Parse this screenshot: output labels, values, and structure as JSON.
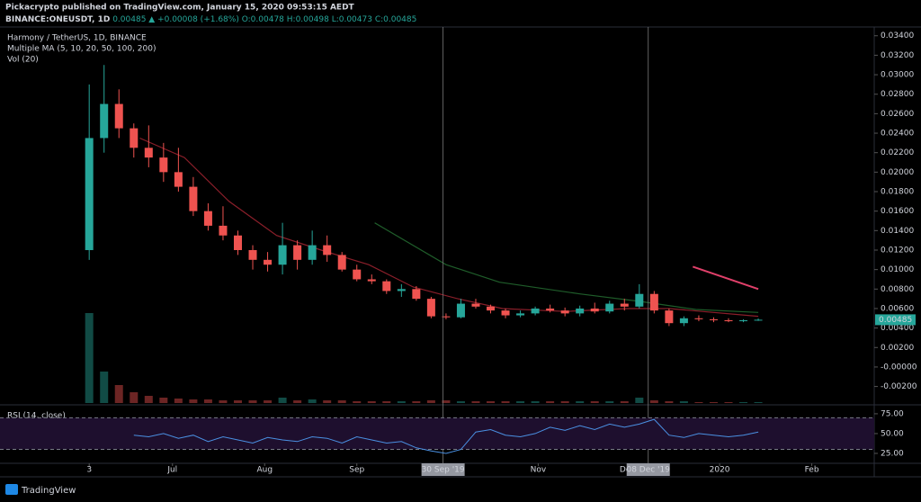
{
  "header": {
    "line1": "Pickacrypto published on TradingView.com, January 15, 2020 09:53:15 AEDT",
    "symbol": "BINANCE:ONEUSDT, 1D",
    "change": "0.00485 ▲ +0.00008 (+1.68%)",
    "ohlc": [
      "O:0.00478",
      "H:0.00498",
      "L:0.00473",
      "C:0.00485"
    ]
  },
  "footer": "TradingView",
  "chart_data": [
    {
      "type": "candlestick",
      "title": "Harmony / TetherUS, 1D, BINANCE",
      "indicators": [
        "Multiple MA (5, 10, 20, 50, 100, 200)",
        "Vol (20)"
      ],
      "x": [
        "2019-06-03",
        "2019-06-08",
        "2019-06-13",
        "2019-06-18",
        "2019-06-23",
        "2019-06-28",
        "2019-07-03",
        "2019-07-08",
        "2019-07-13",
        "2019-07-18",
        "2019-07-23",
        "2019-07-28",
        "2019-08-02",
        "2019-08-07",
        "2019-08-12",
        "2019-08-17",
        "2019-08-22",
        "2019-08-27",
        "2019-09-01",
        "2019-09-06",
        "2019-09-11",
        "2019-09-16",
        "2019-09-21",
        "2019-09-26",
        "2019-10-01",
        "2019-10-06",
        "2019-10-11",
        "2019-10-16",
        "2019-10-21",
        "2019-10-26",
        "2019-10-31",
        "2019-11-05",
        "2019-11-10",
        "2019-11-15",
        "2019-11-20",
        "2019-11-25",
        "2019-11-30",
        "2019-12-05",
        "2019-12-10",
        "2019-12-15",
        "2019-12-20",
        "2019-12-25",
        "2019-12-30",
        "2020-01-04",
        "2020-01-09",
        "2020-01-14"
      ],
      "open": [
        0.012,
        0.0235,
        0.027,
        0.0245,
        0.0225,
        0.0215,
        0.02,
        0.0185,
        0.016,
        0.0145,
        0.0135,
        0.012,
        0.011,
        0.0105,
        0.0125,
        0.011,
        0.0125,
        0.0115,
        0.01,
        0.009,
        0.0088,
        0.0078,
        0.008,
        0.007,
        0.0052,
        0.0051,
        0.0065,
        0.0062,
        0.0058,
        0.0053,
        0.0055,
        0.006,
        0.0058,
        0.0055,
        0.006,
        0.0057,
        0.0065,
        0.0062,
        0.0075,
        0.0058,
        0.0045,
        0.005,
        0.0049,
        0.0048,
        0.0047,
        0.00478
      ],
      "high": [
        0.029,
        0.031,
        0.0285,
        0.025,
        0.0248,
        0.023,
        0.0225,
        0.0195,
        0.0168,
        0.0165,
        0.014,
        0.0125,
        0.0118,
        0.0148,
        0.013,
        0.014,
        0.0135,
        0.0118,
        0.0105,
        0.0095,
        0.009,
        0.0085,
        0.0083,
        0.0072,
        0.0055,
        0.007,
        0.007,
        0.0064,
        0.006,
        0.0058,
        0.0062,
        0.0064,
        0.0061,
        0.0063,
        0.0066,
        0.0068,
        0.007,
        0.0085,
        0.0078,
        0.006,
        0.0052,
        0.0053,
        0.0051,
        0.005,
        0.0049,
        0.00498
      ],
      "low": [
        0.011,
        0.022,
        0.0235,
        0.0215,
        0.0205,
        0.019,
        0.018,
        0.0155,
        0.014,
        0.013,
        0.0115,
        0.01,
        0.0098,
        0.0095,
        0.01,
        0.0105,
        0.0108,
        0.0098,
        0.0088,
        0.0085,
        0.0075,
        0.0072,
        0.0068,
        0.005,
        0.0049,
        0.005,
        0.006,
        0.0055,
        0.005,
        0.0051,
        0.0053,
        0.0056,
        0.0052,
        0.0052,
        0.0055,
        0.0055,
        0.0058,
        0.006,
        0.0055,
        0.0042,
        0.0042,
        0.0047,
        0.0046,
        0.0046,
        0.0046,
        0.00473
      ],
      "close": [
        0.0235,
        0.027,
        0.0245,
        0.0225,
        0.0215,
        0.02,
        0.0185,
        0.016,
        0.0145,
        0.0135,
        0.012,
        0.011,
        0.0105,
        0.0125,
        0.011,
        0.0125,
        0.0115,
        0.01,
        0.009,
        0.0088,
        0.0078,
        0.008,
        0.007,
        0.0052,
        0.0051,
        0.0065,
        0.0062,
        0.0058,
        0.0053,
        0.0055,
        0.006,
        0.0058,
        0.0055,
        0.006,
        0.0057,
        0.0065,
        0.0062,
        0.0075,
        0.0058,
        0.0045,
        0.005,
        0.0049,
        0.0048,
        0.0047,
        0.0048,
        0.00485
      ],
      "volume": [
        100,
        35,
        20,
        12,
        8,
        6,
        5,
        4,
        4,
        3,
        3,
        3,
        3,
        6,
        3,
        4,
        3,
        3,
        2,
        2,
        2,
        2,
        2,
        3,
        3,
        2,
        2,
        2,
        2,
        2,
        2,
        2,
        2,
        2,
        2,
        2,
        2,
        6,
        3,
        2,
        2,
        1,
        1,
        1,
        1,
        1
      ],
      "up_color": "#26a69a",
      "down_color": "#ef5350",
      "series": [
        {
          "color": "#8b1f2a",
          "x": [
            "2019-06-20",
            "2019-07-05",
            "2019-07-20",
            "2019-08-05",
            "2019-08-20",
            "2019-09-05",
            "2019-09-20",
            "2019-10-05",
            "2019-10-20",
            "2019-11-10",
            "2019-12-01",
            "2019-12-15",
            "2020-01-14"
          ],
          "values": [
            0.0235,
            0.0215,
            0.017,
            0.0135,
            0.012,
            0.0105,
            0.0082,
            0.007,
            0.006,
            0.0057,
            0.006,
            0.006,
            0.0052
          ]
        },
        {
          "color": "#1f5d2a",
          "x": [
            "2019-09-07",
            "2019-10-01",
            "2019-10-19",
            "2019-11-15",
            "2019-12-06",
            "2019-12-24",
            "2020-01-14"
          ],
          "values": [
            0.0148,
            0.0105,
            0.0087,
            0.0075,
            0.0067,
            0.0059,
            0.0056
          ]
        },
        {
          "color": "#e0406a",
          "x": [
            "2019-12-23",
            "2020-01-14"
          ],
          "values": [
            0.0103,
            0.008
          ]
        }
      ],
      "ylim": [
        -0.0037,
        0.0349
      ],
      "yticks": [
        {
          "value": 0.034,
          "label": "0.03400"
        },
        {
          "value": 0.032,
          "label": "0.03200"
        },
        {
          "value": 0.03,
          "label": "0.03000"
        },
        {
          "value": 0.028,
          "label": "0.02800"
        },
        {
          "value": 0.026,
          "label": "0.02600"
        },
        {
          "value": 0.024,
          "label": "0.02400"
        },
        {
          "value": 0.022,
          "label": "0.02200"
        },
        {
          "value": 0.02,
          "label": "0.02000"
        },
        {
          "value": 0.018,
          "label": "0.01800"
        },
        {
          "value": 0.016,
          "label": "0.01600"
        },
        {
          "value": 0.014,
          "label": "0.01400"
        },
        {
          "value": 0.012,
          "label": "0.01200"
        },
        {
          "value": 0.01,
          "label": "0.01000"
        },
        {
          "value": 0.008,
          "label": "0.00800"
        },
        {
          "value": 0.006,
          "label": "0.00600"
        },
        {
          "value": 0.004,
          "label": "0.00400"
        },
        {
          "value": 0.002,
          "label": "0.00200"
        },
        {
          "value": 0,
          "label": "-0.00000"
        },
        {
          "value": -0.002,
          "label": "-0.00200"
        }
      ],
      "xlim": [
        "2019-05-04",
        "2020-02-22"
      ],
      "xticks": [
        {
          "value": "2019-06-03",
          "label": "3"
        },
        {
          "value": "2019-07-01",
          "label": "Jul"
        },
        {
          "value": "2019-08-01",
          "label": "Aug"
        },
        {
          "value": "2019-09-01",
          "label": "Sep"
        },
        {
          "value": "2019-11-01",
          "label": "Nov"
        },
        {
          "value": "2019-12-01",
          "label": "Dec"
        },
        {
          "value": "2020-01-01",
          "label": "2020"
        },
        {
          "value": "2020-02-01",
          "label": "Feb"
        }
      ],
      "last_label": "0.00485",
      "crosshairs": [
        {
          "x": "2019-09-30",
          "label": "30 Sep '19"
        },
        {
          "x": "2019-12-08",
          "label": "08 Dec '19"
        }
      ]
    },
    {
      "type": "line",
      "title": "RSI (14, close)",
      "color": "#4a90e2",
      "x": [
        "2019-06-18",
        "2019-06-23",
        "2019-06-28",
        "2019-07-03",
        "2019-07-08",
        "2019-07-13",
        "2019-07-18",
        "2019-07-23",
        "2019-07-28",
        "2019-08-02",
        "2019-08-07",
        "2019-08-12",
        "2019-08-17",
        "2019-08-22",
        "2019-08-27",
        "2019-09-01",
        "2019-09-06",
        "2019-09-11",
        "2019-09-16",
        "2019-09-21",
        "2019-09-26",
        "2019-10-01",
        "2019-10-06",
        "2019-10-11",
        "2019-10-16",
        "2019-10-21",
        "2019-10-26",
        "2019-10-31",
        "2019-11-05",
        "2019-11-10",
        "2019-11-15",
        "2019-11-20",
        "2019-11-25",
        "2019-11-30",
        "2019-12-05",
        "2019-12-10",
        "2019-12-15",
        "2019-12-20",
        "2019-12-25",
        "2019-12-30",
        "2020-01-04",
        "2020-01-09",
        "2020-01-14"
      ],
      "values": [
        48,
        46,
        50,
        44,
        48,
        40,
        46,
        42,
        38,
        45,
        42,
        40,
        46,
        44,
        38,
        46,
        42,
        38,
        40,
        32,
        28,
        25,
        30,
        52,
        55,
        48,
        46,
        50,
        58,
        54,
        60,
        55,
        62,
        58,
        62,
        68,
        48,
        45,
        50,
        48,
        46,
        48,
        52
      ],
      "ylim": [
        13.6,
        84
      ],
      "yticks": [
        {
          "value": 75,
          "label": "75.00"
        },
        {
          "value": 50,
          "label": "50.00"
        },
        {
          "value": 25,
          "label": "25.00"
        }
      ],
      "levels": [
        70,
        30
      ]
    }
  ]
}
